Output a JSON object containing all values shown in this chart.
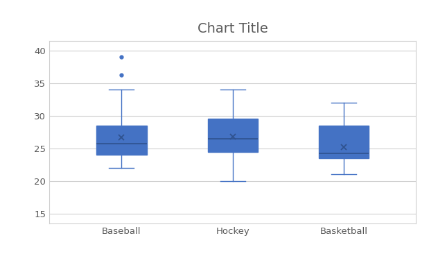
{
  "title": "Chart Title",
  "categories": [
    "Baseball",
    "Hockey",
    "Basketball"
  ],
  "box_data": {
    "Baseball": {
      "whislo": 22.0,
      "q1": 24.0,
      "med": 25.7,
      "q3": 28.5,
      "whishi": 34.0,
      "mean": 26.7,
      "fliers": [
        36.2,
        39.0
      ]
    },
    "Hockey": {
      "whislo": 20.0,
      "q1": 24.5,
      "med": 26.5,
      "q3": 29.5,
      "whishi": 34.0,
      "mean": 26.8,
      "fliers": []
    },
    "Basketball": {
      "whislo": 21.0,
      "q1": 23.5,
      "med": 24.2,
      "q3": 28.5,
      "whishi": 32.0,
      "mean": 25.2,
      "fliers": []
    }
  },
  "ylim": [
    13.5,
    41.5
  ],
  "yticks": [
    15,
    20,
    25,
    30,
    35,
    40
  ],
  "box_color": "#4472C4",
  "box_edge_color": "#4472C4",
  "median_color": "#2F528F",
  "whisker_color": "#4472C4",
  "cap_color": "#4472C4",
  "flier_color": "#4472C4",
  "mean_marker": "x",
  "mean_color": "#2F528F",
  "title_fontsize": 14,
  "title_color": "#595959",
  "tick_fontsize": 9.5,
  "tick_color": "#595959",
  "background_color": "#FFFFFF",
  "outer_bg_color": "#FFFFFF",
  "grid_color": "#D0D0D0",
  "box_width": 0.45,
  "xlim": [
    0.35,
    3.65
  ]
}
